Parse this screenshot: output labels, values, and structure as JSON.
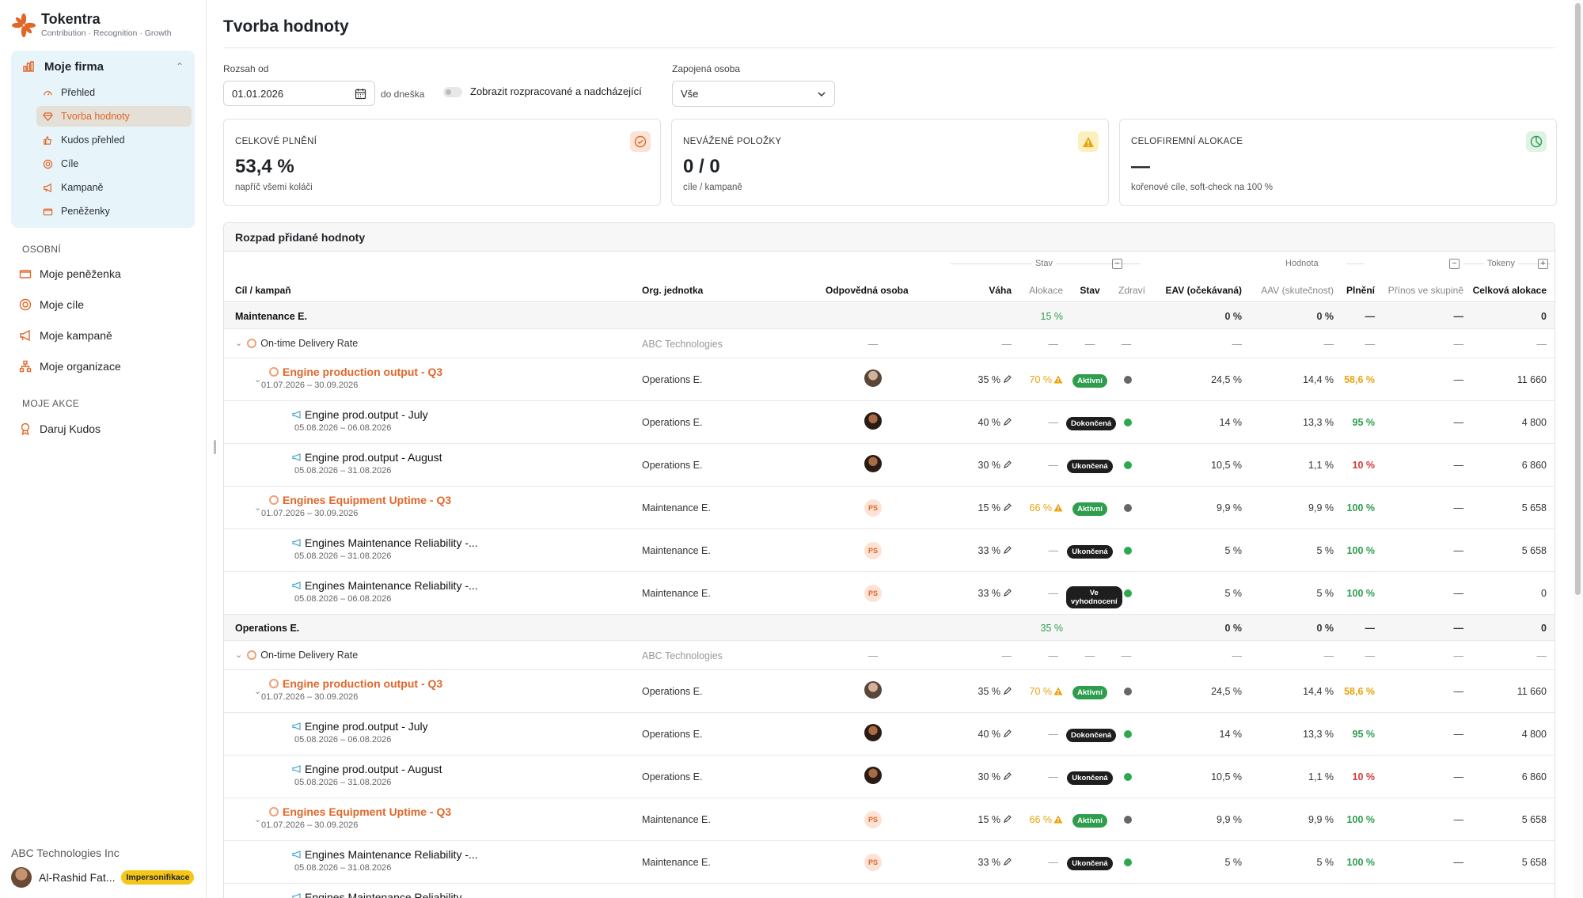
{
  "brand": {
    "name": "Tokentra",
    "tagline": "Contribution · Recognition · Growth"
  },
  "sidebar": {
    "firm_title": "Moje firma",
    "firm_items": [
      {
        "label": "Přehled",
        "icon": "gauge-icon"
      },
      {
        "label": "Tvorba hodnoty",
        "icon": "gem-icon",
        "active": true
      },
      {
        "label": "Kudos přehled",
        "icon": "thumb-icon"
      },
      {
        "label": "Cíle",
        "icon": "target-icon"
      },
      {
        "label": "Kampaně",
        "icon": "megaphone-icon"
      },
      {
        "label": "Peněženky",
        "icon": "wallet-icon"
      }
    ],
    "personal_label": "OSOBNÍ",
    "personal_items": [
      {
        "label": "Moje peněženka",
        "icon": "wallet-icon"
      },
      {
        "label": "Moje cíle",
        "icon": "target-icon"
      },
      {
        "label": "Moje kampaně",
        "icon": "megaphone-icon"
      },
      {
        "label": "Moje organizace",
        "icon": "org-icon"
      }
    ],
    "actions_label": "MOJE AKCE",
    "action_items": [
      {
        "label": "Daruj Kudos",
        "icon": "award-icon"
      }
    ],
    "org_name": "ABC Technologies Inc",
    "user_name": "Al-Rashid Fat...",
    "user_badge": "Impersonifikace"
  },
  "page": {
    "title": "Tvorba hodnoty",
    "range_label": "Rozsah od",
    "range_from": "01.01.2026",
    "range_until": "do dneška",
    "toggle_label": "Zobrazit rozpracované a nadcházející",
    "person_label": "Zapojená osoba",
    "person_value": "Vše"
  },
  "kpis": [
    {
      "label": "CELKOVÉ PLNĚNÍ",
      "value": "53,4 %",
      "sub": "napříč všemi koláči",
      "icon": "check-circle-icon",
      "color": "#fbe3d6"
    },
    {
      "label": "NEVÁŽENÉ POLOŽKY",
      "value": "0 / 0",
      "sub": "cíle / kampaně",
      "icon": "warning-icon",
      "color": "#fdf0bf"
    },
    {
      "label": "CELOFIREMNÍ ALOKACE",
      "value": "—",
      "sub": "kořenové cíle, soft-check na 100 %",
      "icon": "pie-icon",
      "color": "#dff2e4"
    }
  ],
  "table": {
    "title": "Rozpad přidané hodnoty",
    "groups": {
      "stav": "Stav",
      "hodnota": "Hodnota",
      "tokeny": "Tokeny"
    },
    "headers": {
      "name": "Cíl / kampaň",
      "org": "Org. jednotka",
      "person": "Odpovědná osoba",
      "weight": "Váha",
      "alloc": "Alokace",
      "status": "Stav",
      "health": "Zdraví",
      "eav": "EAV (očekávaná)",
      "aav": "AAV (skutečnost)",
      "fulfil": "Plnění",
      "contrib": "Přínos ve skupině",
      "total": "Celková alokace"
    },
    "rows": [
      {
        "kind": "group",
        "name": "Maintenance E.",
        "alloc": "15 %",
        "eav": "0 %",
        "aav": "0 %",
        "fulfil": "—",
        "contrib": "—",
        "total": "0"
      },
      {
        "kind": "goal",
        "name": "On-time Delivery Rate",
        "org": "ABC Technologies",
        "person": "—",
        "weight": "—",
        "alloc": "—",
        "status": "—",
        "health": "—",
        "eav": "—",
        "aav": "—",
        "fulfil": "—",
        "contrib": "—",
        "total": "—"
      },
      {
        "kind": "sub",
        "name": "Engine production output - Q3",
        "dates": "01.07.2026 – 30.09.2026",
        "org": "Operations E.",
        "avatar": "a",
        "weight": "35 %",
        "alloc": "70 %",
        "warn": true,
        "status": "Aktivní",
        "badge": "green",
        "health": "gray",
        "eav": "24,5 %",
        "aav": "14,4 %",
        "fulfil": "58,6 %",
        "fcolor": "amber",
        "contrib": "—",
        "total": "11 660"
      },
      {
        "kind": "camp",
        "name": "Engine prod.output - July",
        "dates": "05.08.2026 – 06.08.2026",
        "org": "Operations E.",
        "avatar": "b",
        "weight": "40 %",
        "alloc": "—",
        "status": "Dokončená",
        "badge": "dark",
        "health": "green",
        "eav": "14 %",
        "aav": "13,3 %",
        "fulfil": "95 %",
        "fcolor": "green",
        "contrib": "—",
        "total": "4 800"
      },
      {
        "kind": "camp",
        "name": "Engine prod.output - August",
        "dates": "05.08.2026 – 31.08.2026",
        "org": "Operations E.",
        "avatar": "b",
        "weight": "30 %",
        "alloc": "—",
        "status": "Ukončená",
        "badge": "dark",
        "health": "green",
        "eav": "10,5 %",
        "aav": "1,1 %",
        "fulfil": "10 %",
        "fcolor": "red",
        "contrib": "—",
        "total": "6 860"
      },
      {
        "kind": "sub",
        "name": "Engines Equipment Uptime - Q3",
        "dates": "01.07.2026 – 30.09.2026",
        "org": "Maintenance E.",
        "avatar": "ps",
        "weight": "15 %",
        "alloc": "66 %",
        "warn": true,
        "status": "Aktivní",
        "badge": "green",
        "health": "gray",
        "eav": "9,9 %",
        "aav": "9,9 %",
        "fulfil": "100 %",
        "fcolor": "green",
        "contrib": "—",
        "total": "5 658"
      },
      {
        "kind": "camp",
        "name": "Engines Maintenance Reliability -...",
        "dates": "05.08.2026 – 31.08.2026",
        "org": "Maintenance E.",
        "avatar": "ps",
        "weight": "33 %",
        "alloc": "—",
        "status": "Ukončená",
        "badge": "dark",
        "health": "green",
        "eav": "5 %",
        "aav": "5 %",
        "fulfil": "100 %",
        "fcolor": "green",
        "contrib": "—",
        "total": "5 658"
      },
      {
        "kind": "camp",
        "name": "Engines Maintenance Reliability -...",
        "dates": "05.08.2026 – 06.08.2026",
        "org": "Maintenance E.",
        "avatar": "ps",
        "weight": "33 %",
        "alloc": "—",
        "status": "Ve vyhodnocení",
        "badge": "dark",
        "health": "green",
        "eav": "5 %",
        "aav": "5 %",
        "fulfil": "100 %",
        "fcolor": "green",
        "contrib": "—",
        "total": "0"
      },
      {
        "kind": "group",
        "name": "Operations E.",
        "alloc": "35 %",
        "eav": "0 %",
        "aav": "0 %",
        "fulfil": "—",
        "contrib": "—",
        "total": "0"
      },
      {
        "kind": "goal",
        "name": "On-time Delivery Rate",
        "org": "ABC Technologies",
        "person": "—",
        "weight": "—",
        "alloc": "—",
        "status": "—",
        "health": "—",
        "eav": "—",
        "aav": "—",
        "fulfil": "—",
        "contrib": "—",
        "total": "—"
      },
      {
        "kind": "sub",
        "name": "Engine production output - Q3",
        "dates": "01.07.2026 – 30.09.2026",
        "org": "Operations E.",
        "avatar": "a",
        "weight": "35 %",
        "alloc": "70 %",
        "warn": true,
        "status": "Aktivní",
        "badge": "green",
        "health": "gray",
        "eav": "24,5 %",
        "aav": "14,4 %",
        "fulfil": "58,6 %",
        "fcolor": "amber",
        "contrib": "—",
        "total": "11 660"
      },
      {
        "kind": "camp",
        "name": "Engine prod.output - July",
        "dates": "05.08.2026 – 06.08.2026",
        "org": "Operations E.",
        "avatar": "b",
        "weight": "40 %",
        "alloc": "—",
        "status": "Dokončená",
        "badge": "dark",
        "health": "green",
        "eav": "14 %",
        "aav": "13,3 %",
        "fulfil": "95 %",
        "fcolor": "green",
        "contrib": "—",
        "total": "4 800"
      },
      {
        "kind": "camp",
        "name": "Engine prod.output - August",
        "dates": "05.08.2026 – 31.08.2026",
        "org": "Operations E.",
        "avatar": "b",
        "weight": "30 %",
        "alloc": "—",
        "status": "Ukončená",
        "badge": "dark",
        "health": "green",
        "eav": "10,5 %",
        "aav": "1,1 %",
        "fulfil": "10 %",
        "fcolor": "red",
        "contrib": "—",
        "total": "6 860"
      },
      {
        "kind": "sub",
        "name": "Engines Equipment Uptime - Q3",
        "dates": "01.07.2026 – 30.09.2026",
        "org": "Maintenance E.",
        "avatar": "ps",
        "weight": "15 %",
        "alloc": "66 %",
        "warn": true,
        "status": "Aktivní",
        "badge": "green",
        "health": "gray",
        "eav": "9,9 %",
        "aav": "9,9 %",
        "fulfil": "100 %",
        "fcolor": "green",
        "contrib": "—",
        "total": "5 658"
      },
      {
        "kind": "camp",
        "name": "Engines Maintenance Reliability -...",
        "dates": "05.08.2026 – 31.08.2026",
        "org": "Maintenance E.",
        "avatar": "ps",
        "weight": "33 %",
        "alloc": "—",
        "status": "Ukončená",
        "badge": "dark",
        "health": "green",
        "eav": "5 %",
        "aav": "5 %",
        "fulfil": "100 %",
        "fcolor": "green",
        "contrib": "—",
        "total": "5 658"
      },
      {
        "kind": "camp",
        "name": "Engines Maintenance Reliability",
        "dates": "",
        "org": "",
        "avatar": "",
        "weight": "",
        "alloc": "",
        "status": "",
        "badge": "",
        "health": "",
        "eav": "",
        "aav": "",
        "fulfil": "",
        "fcolor": "",
        "contrib": "",
        "total": ""
      }
    ]
  },
  "colors": {
    "accent": "#e0672a",
    "sidebar_bg": "#e7f5fa",
    "green": "#2e9e4e",
    "red": "#d23a3a",
    "amber": "#e8a40f"
  }
}
